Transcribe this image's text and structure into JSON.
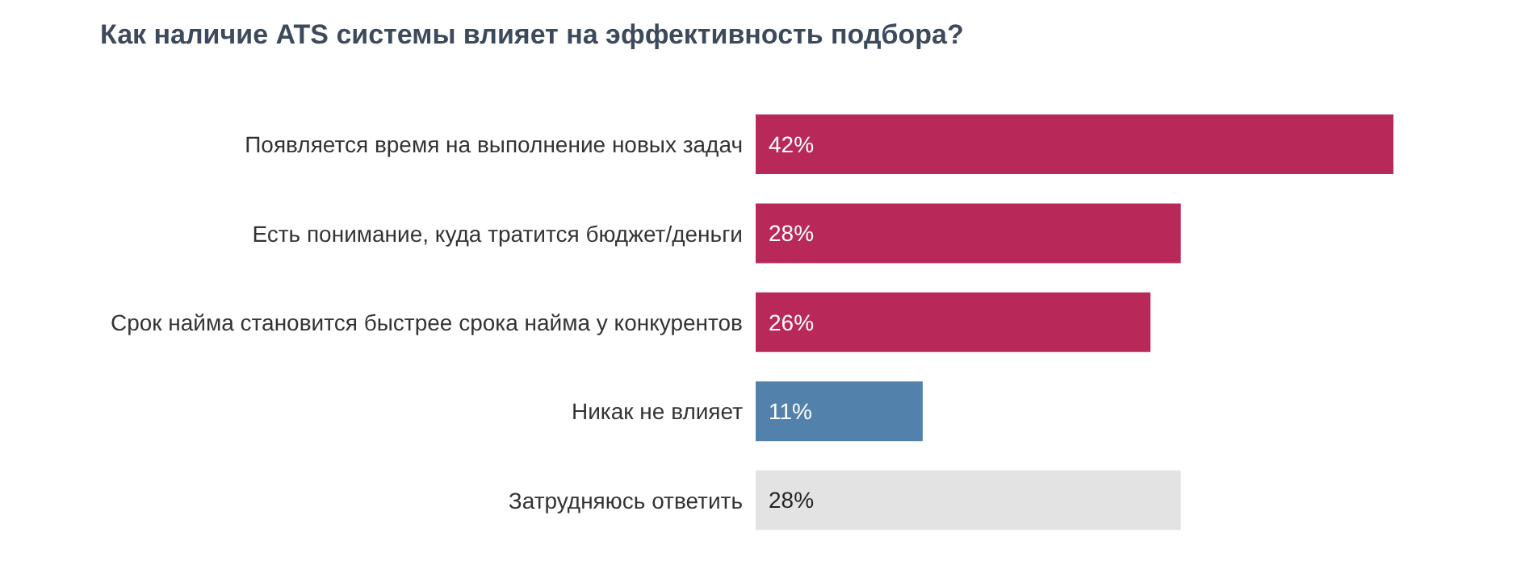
{
  "chart_data": {
    "type": "bar",
    "orientation": "horizontal",
    "title": "Как наличие ATS системы влияет на эффективность подбора?",
    "categories": [
      "Появляется время на выполнение новых задач",
      "Есть понимание, куда тратится бюджет/деньги",
      "Срок найма становится быстрее срока найма у конкурентов",
      "Никак не влияет",
      "Затрудняюсь ответить"
    ],
    "values": [
      42,
      28,
      26,
      11,
      28
    ],
    "colors": [
      "#b8295a",
      "#b8295a",
      "#b8295a",
      "#5282ab",
      "#e3e3e3"
    ],
    "value_labels": [
      "42%",
      "28%",
      "26%",
      "11%",
      "28%"
    ]
  }
}
